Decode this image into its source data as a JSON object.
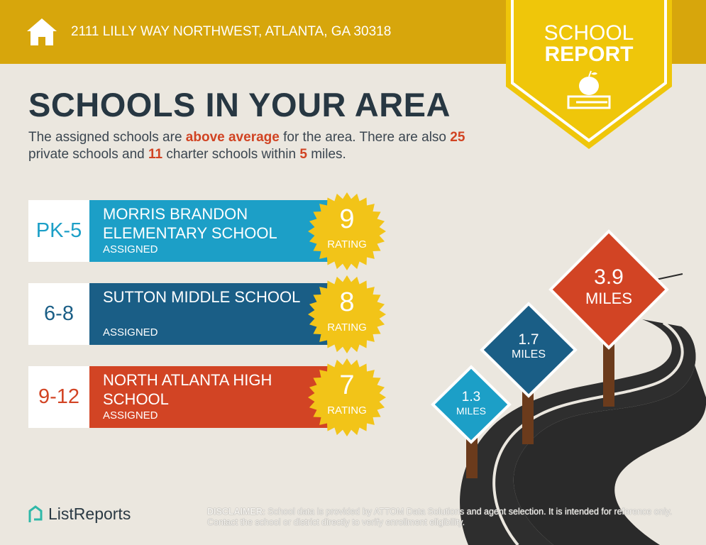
{
  "header": {
    "address": "2111 LILLY WAY NORTHWEST, ATLANTA, GA 30318",
    "icon": "home-icon"
  },
  "badge": {
    "line1": "SCHOOL",
    "line2": "REPORT",
    "icon": "apple-books-icon"
  },
  "title": "SCHOOLS IN YOUR AREA",
  "intro": {
    "p1": "The assigned schools are ",
    "above": "above average",
    "p2": " for the area. There are also ",
    "private": "25",
    "p3": " private schools and ",
    "charter": "11",
    "p4": " charter schools within ",
    "miles": "5",
    "p5": " miles."
  },
  "schools": [
    {
      "grade": "PK-5",
      "name": "MORRIS BRANDON ELEMENTARY SCHOOL",
      "status": "ASSIGNED",
      "rating": "9",
      "rating_label": "RATING",
      "color": "#1c9fc7"
    },
    {
      "grade": "6-8",
      "name": "SUTTON MIDDLE SCHOOL",
      "status": "ASSIGNED",
      "rating": "8",
      "rating_label": "RATING",
      "color": "#1a5e86"
    },
    {
      "grade": "9-12",
      "name": "NORTH ATLANTA HIGH SCHOOL",
      "status": "ASSIGNED",
      "rating": "7",
      "rating_label": "RATING",
      "color": "#d24424"
    }
  ],
  "signs": [
    {
      "value": "1.3",
      "unit": "MILES"
    },
    {
      "value": "1.7",
      "unit": "MILES"
    },
    {
      "value": "3.9",
      "unit": "MILES"
    }
  ],
  "footer": {
    "logo": "ListReports",
    "disclaimer_label": "DISCLAIMER:",
    "disclaimer": " School data is provided by ATTOM Data Solutions and agent selection. It is intended for reference only. Contact the school or district directly to verify enrollment eligibility."
  }
}
